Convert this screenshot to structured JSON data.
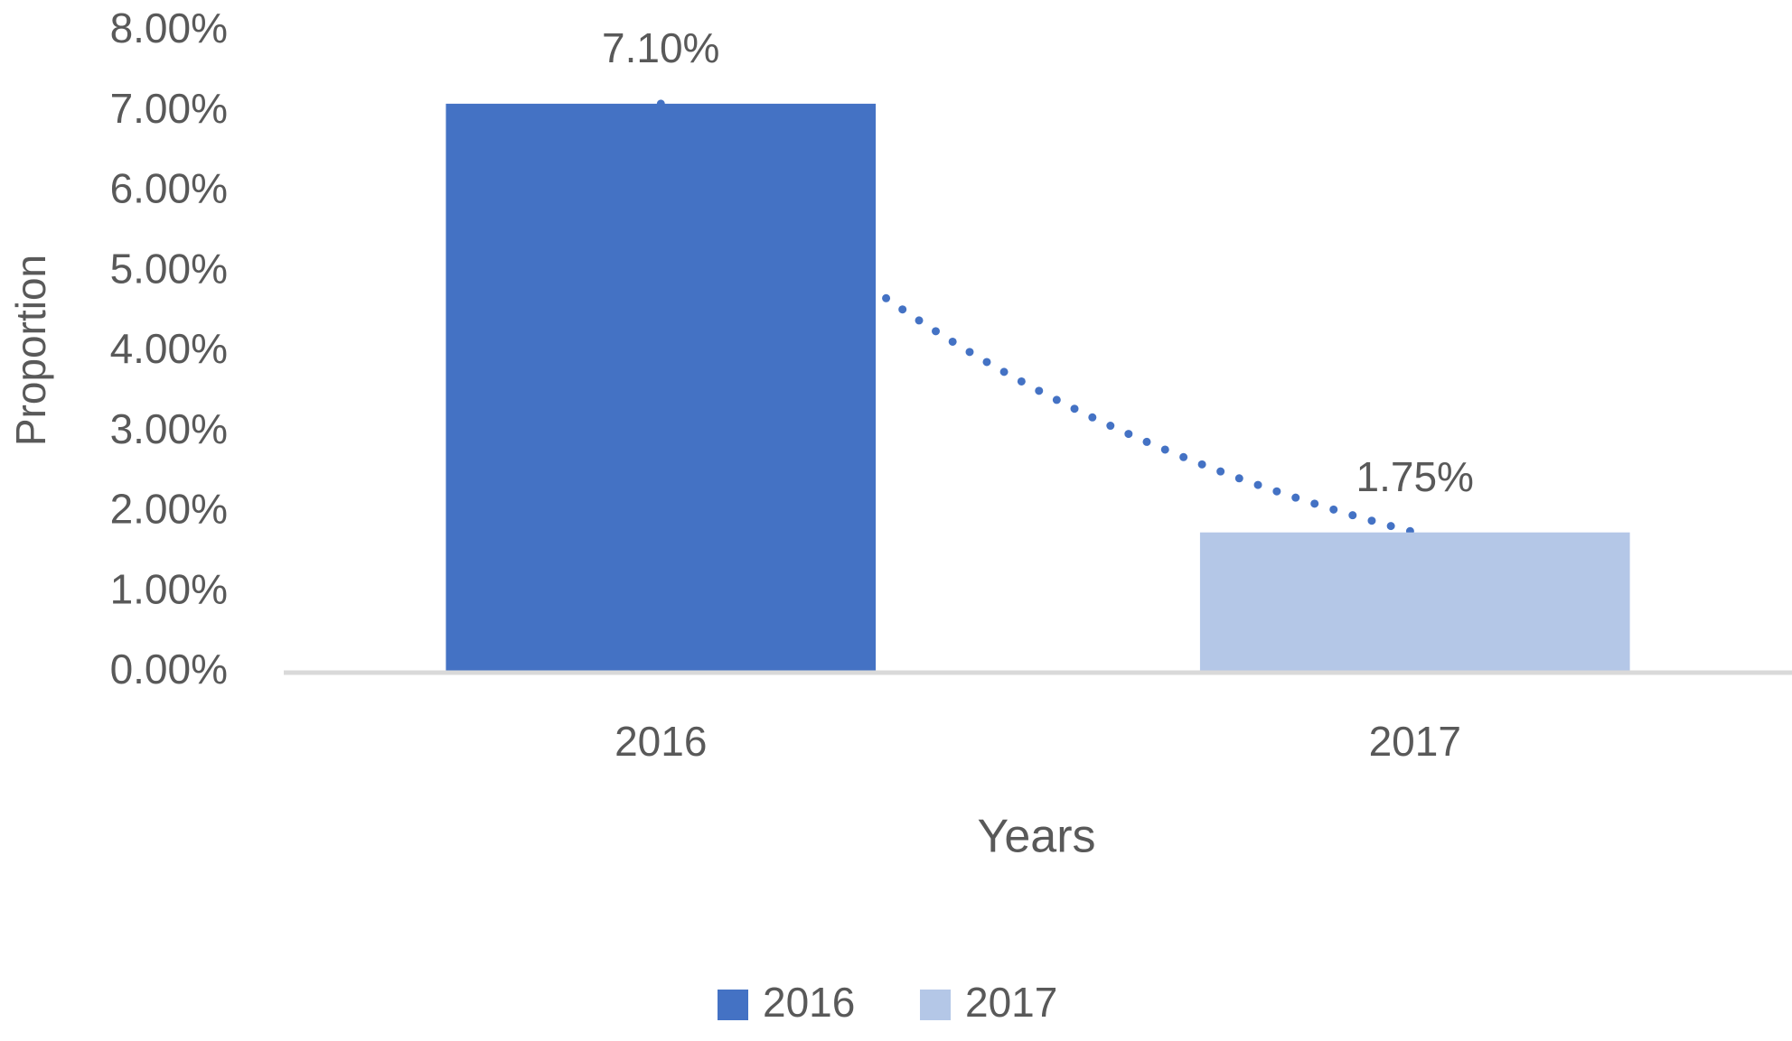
{
  "chart_data": {
    "type": "bar",
    "x_label": "Years",
    "y_label": "Proportion",
    "categories": [
      "2016",
      "2017"
    ],
    "values": [
      7.1,
      1.75
    ],
    "value_labels": [
      "7.10%",
      "1.75%"
    ],
    "colors": [
      "#4472c4",
      "#b4c7e7"
    ],
    "trendline": "exponential",
    "trendline_color": "#4472c4",
    "ylim": [
      0,
      8
    ],
    "yticks": [
      {
        "value": 0,
        "label": "0.00%"
      },
      {
        "value": 1,
        "label": "1.00%"
      },
      {
        "value": 2,
        "label": "2.00%"
      },
      {
        "value": 3,
        "label": "3.00%"
      },
      {
        "value": 4,
        "label": "4.00%"
      },
      {
        "value": 5,
        "label": "5.00%"
      },
      {
        "value": 6,
        "label": "6.00%"
      },
      {
        "value": 7,
        "label": "7.00%"
      },
      {
        "value": 8,
        "label": "8.00%"
      }
    ],
    "grid": false,
    "legend": "bottom"
  }
}
